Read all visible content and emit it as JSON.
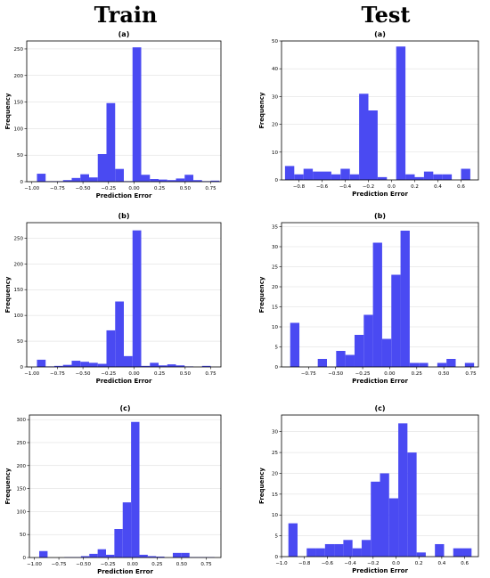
{
  "headers": {
    "left": "Train",
    "right": "Test"
  },
  "chart_data": [
    {
      "type": "bar",
      "title": "(a)",
      "column": "Train",
      "xlabel": "Prediction Error",
      "ylabel": "Frequency",
      "xlim": [
        -1.05,
        0.85
      ],
      "ylim": [
        0,
        265
      ],
      "xticks": [
        -1.0,
        -0.75,
        -0.5,
        -0.25,
        0.0,
        0.25,
        0.5,
        0.75
      ],
      "xtick_labels": [
        "−1.00",
        "−0.75",
        "−0.50",
        "−0.25",
        "0.00",
        "0.25",
        "0.50",
        "0.75"
      ],
      "yticks": [
        0,
        50,
        100,
        150,
        200,
        250
      ],
      "bin_edges": [
        -0.95,
        -0.865,
        -0.78,
        -0.695,
        -0.61,
        -0.525,
        -0.44,
        -0.355,
        -0.27,
        -0.185,
        -0.1,
        -0.015,
        0.07,
        0.155,
        0.24,
        0.325,
        0.41,
        0.495,
        0.58,
        0.665,
        0.75,
        0.835
      ],
      "counts": [
        15,
        1,
        1,
        3,
        7,
        14,
        8,
        52,
        148,
        24,
        1,
        253,
        13,
        5,
        4,
        3,
        6,
        13,
        3,
        1,
        2
      ]
    },
    {
      "type": "bar",
      "title": "(a)",
      "column": "Test",
      "xlabel": "Prediction Error",
      "ylabel": "Frequency",
      "xlim": [
        -0.95,
        0.75
      ],
      "ylim": [
        0,
        50
      ],
      "xticks": [
        -0.8,
        -0.6,
        -0.4,
        -0.2,
        0.0,
        0.2,
        0.4,
        0.6
      ],
      "xtick_labels": [
        "−0.8",
        "−0.6",
        "−0.4",
        "−0.2",
        "0.0",
        "0.2",
        "0.4",
        "0.6"
      ],
      "yticks": [
        0,
        10,
        20,
        30,
        40,
        50
      ],
      "bin_edges": [
        -0.92,
        -0.84,
        -0.76,
        -0.68,
        -0.6,
        -0.52,
        -0.44,
        -0.36,
        -0.28,
        -0.2,
        -0.12,
        -0.04,
        0.04,
        0.12,
        0.2,
        0.28,
        0.36,
        0.44,
        0.52,
        0.6,
        0.68,
        0.76
      ],
      "counts": [
        5,
        2,
        4,
        3,
        3,
        2,
        4,
        2,
        31,
        25,
        1,
        0,
        48,
        2,
        1,
        3,
        2,
        2,
        0,
        4,
        0
      ]
    },
    {
      "type": "bar",
      "title": "(b)",
      "column": "Train",
      "xlabel": "Prediction Error",
      "ylabel": "Frequency",
      "xlim": [
        -1.05,
        0.85
      ],
      "ylim": [
        0,
        280
      ],
      "xticks": [
        -1.0,
        -0.75,
        -0.5,
        -0.25,
        0.0,
        0.25,
        0.5,
        0.75
      ],
      "xtick_labels": [
        "−1.00",
        "−0.75",
        "−0.50",
        "−0.25",
        "0.00",
        "0.25",
        "0.50",
        "0.75"
      ],
      "yticks": [
        0,
        50,
        100,
        150,
        200,
        250
      ],
      "bin_edges": [
        -0.95,
        -0.865,
        -0.78,
        -0.695,
        -0.61,
        -0.525,
        -0.44,
        -0.355,
        -0.27,
        -0.185,
        -0.1,
        -0.015,
        0.07,
        0.155,
        0.24,
        0.325,
        0.41,
        0.495,
        0.58,
        0.665,
        0.75,
        0.835
      ],
      "counts": [
        14,
        1,
        2,
        4,
        12,
        10,
        8,
        6,
        71,
        127,
        21,
        265,
        2,
        8,
        3,
        5,
        3,
        1,
        0,
        2,
        0
      ]
    },
    {
      "type": "bar",
      "title": "(b)",
      "column": "Test",
      "xlabel": "Prediction Error",
      "ylabel": "Frequency",
      "xlim": [
        -1.0,
        0.82
      ],
      "ylim": [
        0,
        36
      ],
      "xticks": [
        -0.75,
        -0.5,
        -0.25,
        0.0,
        0.25,
        0.5,
        0.75
      ],
      "xtick_labels": [
        "−0.75",
        "−0.50",
        "−0.25",
        "0.00",
        "0.25",
        "0.50",
        "0.75"
      ],
      "yticks": [
        0,
        5,
        10,
        15,
        20,
        25,
        30,
        35
      ],
      "bin_edges": [
        -0.92,
        -0.835,
        -0.75,
        -0.665,
        -0.58,
        -0.495,
        -0.41,
        -0.325,
        -0.24,
        -0.155,
        -0.07,
        0.015,
        0.1,
        0.185,
        0.27,
        0.355,
        0.44,
        0.525,
        0.61,
        0.695,
        0.78
      ],
      "counts": [
        11,
        0,
        0,
        2,
        0,
        4,
        3,
        8,
        13,
        31,
        7,
        23,
        34,
        1,
        1,
        0,
        1,
        2,
        0,
        1
      ]
    },
    {
      "type": "bar",
      "title": "(c)",
      "column": "Train",
      "xlabel": "Prediction Error",
      "ylabel": "Frequency",
      "xlim": [
        -1.05,
        0.9
      ],
      "ylim": [
        0,
        310
      ],
      "xticks": [
        -1.0,
        -0.75,
        -0.5,
        -0.25,
        0.0,
        0.25,
        0.5,
        0.75
      ],
      "xtick_labels": [
        "−1.00",
        "−0.75",
        "−0.50",
        "−0.25",
        "0.00",
        "0.25",
        "0.50",
        "0.75"
      ],
      "yticks": [
        0,
        50,
        100,
        150,
        200,
        250,
        300
      ],
      "bin_edges": [
        -0.95,
        -0.865,
        -0.78,
        -0.695,
        -0.61,
        -0.525,
        -0.44,
        -0.355,
        -0.27,
        -0.185,
        -0.1,
        -0.015,
        0.07,
        0.155,
        0.24,
        0.325,
        0.41,
        0.495,
        0.58,
        0.665,
        0.75,
        0.835
      ],
      "counts": [
        14,
        0,
        0,
        1,
        1,
        3,
        8,
        18,
        6,
        62,
        120,
        295,
        6,
        3,
        2,
        0,
        10,
        10,
        1,
        1,
        1
      ]
    },
    {
      "type": "bar",
      "title": "(c)",
      "column": "Test",
      "xlabel": "Prediction Error",
      "ylabel": "Frequency",
      "xlim": [
        -1.0,
        0.72
      ],
      "ylim": [
        0,
        34
      ],
      "xticks": [
        -1.0,
        -0.8,
        -0.6,
        -0.4,
        -0.2,
        0.0,
        0.2,
        0.4,
        0.6
      ],
      "xtick_labels": [
        "−1.0",
        "−0.8",
        "−0.6",
        "−0.4",
        "−0.2",
        "0.0",
        "0.2",
        "0.4",
        "0.6"
      ],
      "yticks": [
        0,
        5,
        10,
        15,
        20,
        25,
        30
      ],
      "bin_edges": [
        -0.94,
        -0.86,
        -0.78,
        -0.7,
        -0.62,
        -0.54,
        -0.46,
        -0.38,
        -0.3,
        -0.22,
        -0.14,
        -0.06,
        0.02,
        0.1,
        0.18,
        0.26,
        0.34,
        0.42,
        0.5,
        0.58,
        0.66
      ],
      "counts": [
        8,
        0,
        2,
        2,
        3,
        3,
        4,
        2,
        4,
        18,
        20,
        14,
        32,
        25,
        1,
        0,
        3,
        0,
        2,
        2
      ]
    }
  ],
  "colors": {
    "bar": "#4a4af2",
    "axis": "#000000",
    "grid": "#d9d9d9"
  }
}
